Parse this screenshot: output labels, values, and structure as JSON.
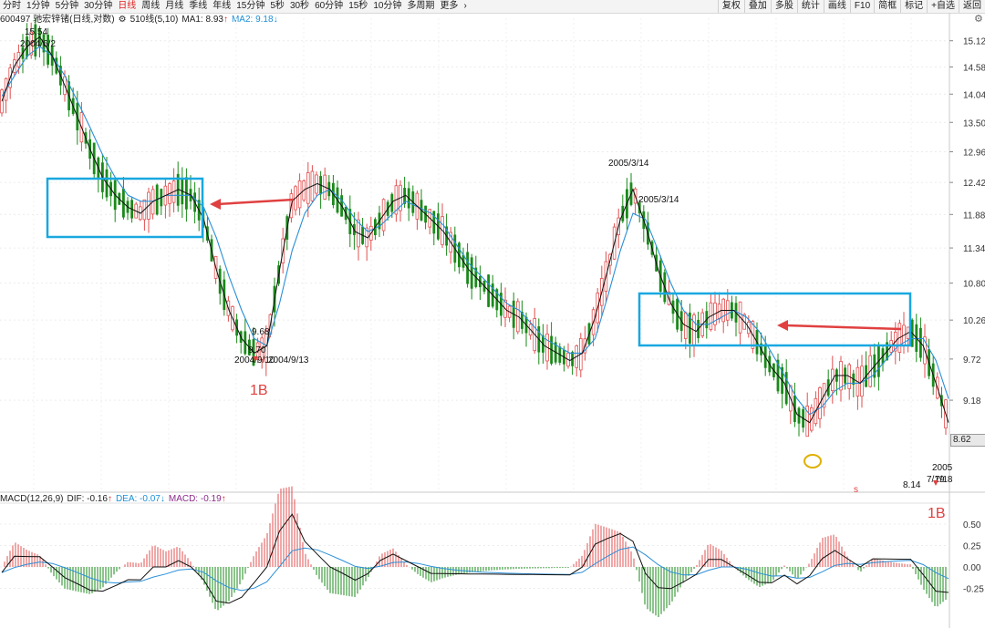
{
  "toolbar": {
    "items": [
      "分时",
      "1分钟",
      "5分钟",
      "30分钟",
      "日线",
      "周线",
      "月线",
      "季线",
      "年线",
      "15分钟",
      "5秒",
      "30秒",
      "60分钟",
      "15秒",
      "10分钟",
      "多周期",
      "更多"
    ],
    "active": "日线",
    "arrow": "›",
    "right_buttons": [
      "复权",
      "叠加",
      "多股",
      "统计",
      "画线",
      "F10",
      "简框",
      "标记",
      "+自选",
      "返回"
    ]
  },
  "info": {
    "code_name": "600497 驰宏锌锗(日线,对数)",
    "ma_label": "510线(5,10)",
    "ma1": "MA1: 8.93",
    "ma1_dir": "↑",
    "ma2": "MA2: 9.18",
    "ma2_dir": "↓"
  },
  "macd_info": {
    "label": "MACD(12,26,9)",
    "dif": "DIF: -0.16",
    "dif_dir": "↑",
    "dea": "DEA: -0.07",
    "dea_dir": "↓",
    "macd": "MACD: -0.19",
    "macd_dir": "↑"
  },
  "price_axis": [
    "15.12",
    "14.58",
    "14.04",
    "13.50",
    "12.96",
    "12.42",
    "11.88",
    "11.34",
    "10.80",
    "10.26",
    "9.72",
    "9.18"
  ],
  "macd_axis": [
    "0.50",
    "0.25",
    "0.00",
    "-0.25"
  ],
  "current_price": "8.62",
  "annotations": {
    "high_price": "15.54",
    "high_date": "2004/6/2",
    "low1_a": "9.68",
    "low1_b": "9.70",
    "low1_dates": "2004/9/10",
    "low1_dates2": "2004/9/13",
    "peak_date_top": "2005/3/14",
    "peak_date": "2005/3/14",
    "low_price_end": "8.14",
    "end_date_a": "2005",
    "end_date_b": "7/19",
    "end_date_c": "7/18",
    "mark_1b_left": "1B",
    "mark_1b_right": "1B",
    "small_s": "s"
  },
  "colors": {
    "up": "#e05050",
    "down": "#1a8a1a",
    "ma1": "#111111",
    "ma2": "#2a8fd8",
    "box": "#19a8e0",
    "arrow": "#e04040",
    "circle": "#e0b000"
  },
  "chart_data": {
    "type": "candlestick",
    "scale": "log",
    "ylim": [
      8.1,
      15.6
    ],
    "series": [
      {
        "name": "MA1",
        "values": [
          13.9,
          14.6,
          15.0,
          15.2,
          14.8,
          14.2,
          13.6,
          13.0,
          12.5,
          12.2,
          12.0,
          11.9,
          12.1,
          12.2,
          12.3,
          12.2,
          11.8,
          11.0,
          10.4,
          10.0,
          9.8,
          9.9,
          11.0,
          12.1,
          12.3,
          12.4,
          12.3,
          12.0,
          11.6,
          11.5,
          11.8,
          12.1,
          12.2,
          12.0,
          11.8,
          11.6,
          11.3,
          11.0,
          10.8,
          10.6,
          10.4,
          10.3,
          10.1,
          9.9,
          9.8,
          9.7,
          9.8,
          10.3,
          11.0,
          11.8,
          12.3,
          11.7,
          11.0,
          10.5,
          10.2,
          10.1,
          10.3,
          10.4,
          10.4,
          10.2,
          9.9,
          9.6,
          9.4,
          9.0,
          8.9,
          9.2,
          9.5,
          9.5,
          9.4,
          9.6,
          9.8,
          10.0,
          10.1,
          9.9,
          9.4,
          8.9
        ]
      },
      {
        "name": "MA2",
        "values": [
          14.0,
          14.4,
          14.8,
          15.0,
          14.8,
          14.4,
          13.9,
          13.4,
          12.9,
          12.5,
          12.2,
          12.1,
          12.1,
          12.2,
          12.2,
          12.2,
          12.0,
          11.5,
          10.9,
          10.4,
          10.0,
          9.9,
          10.5,
          11.3,
          11.9,
          12.2,
          12.3,
          12.1,
          11.8,
          11.6,
          11.7,
          11.9,
          12.1,
          12.0,
          11.9,
          11.7,
          11.4,
          11.1,
          10.9,
          10.7,
          10.5,
          10.4,
          10.2,
          10.0,
          9.9,
          9.8,
          9.8,
          10.0,
          10.6,
          11.3,
          11.9,
          11.8,
          11.3,
          10.8,
          10.4,
          10.2,
          10.2,
          10.3,
          10.4,
          10.3,
          10.1,
          9.8,
          9.5,
          9.2,
          9.0,
          9.1,
          9.3,
          9.4,
          9.4,
          9.5,
          9.7,
          9.9,
          10.0,
          10.0,
          9.7,
          9.2
        ]
      }
    ]
  }
}
